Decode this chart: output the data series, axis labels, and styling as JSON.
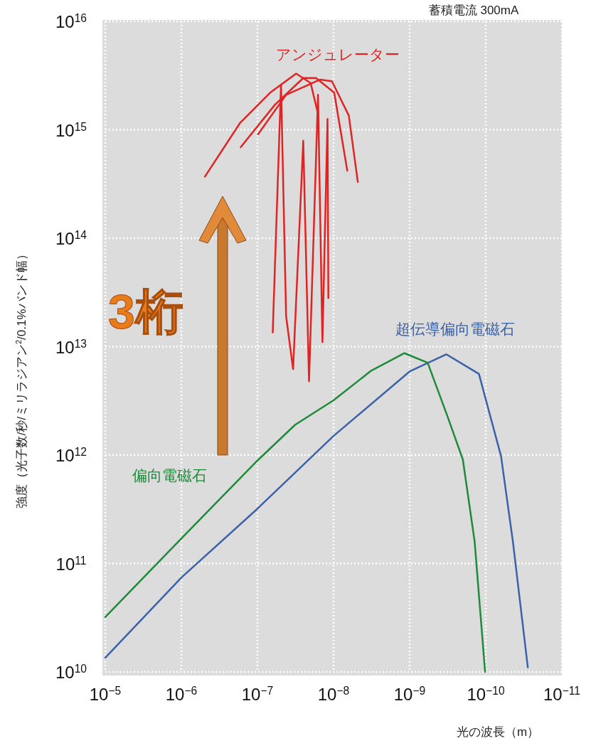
{
  "chart_data": {
    "type": "line",
    "subtitle": "蓄積電流 300mA",
    "xlabel": "光の波長（m）",
    "ylabel": "強度（光子数/秒/ミリラジアン$^{2}$/0.1%バンド幅）",
    "annotations": [
      "3桁"
    ],
    "log": "xy",
    "grid": true,
    "legend": false,
    "xlim": [
      1e-05,
      1e-11
    ],
    "ylim": [
      10000000000.0,
      1e+16
    ],
    "xticks": [
      {
        "value": 1e-05,
        "label": "10$^{−5}$"
      },
      {
        "value": 1e-06,
        "label": "10$^{−6}$"
      },
      {
        "value": 1e-07,
        "label": "10$^{−7}$"
      },
      {
        "value": 1e-08,
        "label": "10$^{−8}$"
      },
      {
        "value": 1e-09,
        "label": "10$^{−9}$"
      },
      {
        "value": 1e-10,
        "label": "10$^{−10}$"
      },
      {
        "value": 1e-11,
        "label": "10$^{−11}$"
      }
    ],
    "yticks": [
      {
        "value": 10000000000.0,
        "label": "10$^{10}$"
      },
      {
        "value": 100000000000.0,
        "label": "10$^{11}$"
      },
      {
        "value": 1000000000000.0,
        "label": "10$^{12}$"
      },
      {
        "value": 10000000000000.0,
        "label": "10$^{13}$"
      },
      {
        "value": 100000000000000.0,
        "label": "10$^{14}$"
      },
      {
        "value": 1000000000000000.0,
        "label": "10$^{15}$"
      },
      {
        "value": 1e+16,
        "label": "10$^{16}$"
      }
    ],
    "series": [
      {
        "name": "アンジュレーター",
        "color": "#e02424",
        "x": [
          4.9e-07,
          1.7e-07,
          6.8e-08,
          3.1e-08,
          2e-08,
          1.6e-08
        ],
        "values": [
          370000000000000.0,
          1150000000000000.0,
          2200000000000000.0,
          3300000000000000.0,
          2700000000000000.0,
          1400000000000000.0
        ]
      },
      {
        "color": "#e02424",
        "x": [
          1.66e-07,
          5.9e-08,
          2.5e-08,
          1.7e-08,
          9.8e-09,
          6.6e-09
        ],
        "values": [
          690000000000000.0,
          1700000000000000.0,
          3000000000000000.0,
          3000000000000000.0,
          2200000000000000.0,
          420000000000000.0
        ]
      },
      {
        "color": "#e02424",
        "x": [
          9.8e-08,
          4.2e-08,
          1.5e-08,
          1.05e-08,
          6.3e-09,
          4.8e-09
        ],
        "values": [
          910000000000000.0,
          2100000000000000.0,
          2900000000000000.0,
          2800000000000000.0,
          1350000000000000.0,
          330000000000000.0
        ]
      },
      {
        "color": "#e02424",
        "x": [
          6.3e-08,
          4.9e-08,
          4.2e-08,
          3.4e-08,
          2.5e-08,
          2.1e-08,
          1.6e-08,
          1.4e-08,
          1.2e-08,
          1.17e-08
        ],
        "values": [
          13500000000000.0,
          2600000000000000.0,
          19000000000000.0,
          6200000000000.0,
          790000000000000.0,
          4800000000000.0,
          2100000000000000.0,
          11000000000000.0,
          1260000000000000.0,
          28000000000000.0
        ]
      },
      {
        "name": "超伝導偏向電磁石",
        "color": "#3b62a8",
        "x": [
          1e-05,
          1e-06,
          1e-07,
          1e-08,
          1e-09,
          3.3e-10,
          1.23e-10,
          6.3e-11,
          4.4e-11,
          2.8e-11
        ],
        "values": [
          13500000000.0,
          74000000000.0,
          320000000000.0,
          1500000000000.0,
          5900000000000.0,
          8500000000000.0,
          5600000000000.0,
          980000000000.0,
          160000000000.0,
          11000000000.0
        ]
      },
      {
        "name": "偏向電磁石",
        "color": "#1f8a3a",
        "x": [
          1e-05,
          1e-06,
          1e-07,
          3.2e-08,
          1e-08,
          3.2e-09,
          1.17e-09,
          5.8e-10,
          3.2e-10,
          2e-10,
          1.4e-10,
          1.02e-10
        ],
        "values": [
          32000000000.0,
          170000000000.0,
          890000000000.0,
          1900000000000.0,
          3200000000000.0,
          6000000000000.0,
          8700000000000.0,
          7100000000000.0,
          2300000000000.0,
          910000000000.0,
          160000000000.0,
          10000000000.0
        ]
      }
    ]
  }
}
